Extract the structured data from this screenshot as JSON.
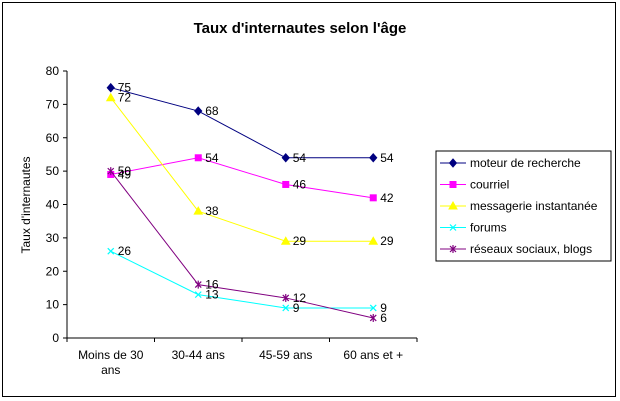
{
  "chart_data": {
    "type": "line",
    "title": "Taux d'internautes selon l'âge",
    "ylabel": "Taux d'internautes",
    "xlabel": "",
    "categories": [
      [
        "Moins de 30",
        "ans"
      ],
      [
        "30-44 ans"
      ],
      [
        "45-59 ans"
      ],
      [
        "60 ans et +"
      ]
    ],
    "ylim": [
      0,
      80
    ],
    "yticks": [
      0,
      10,
      20,
      30,
      40,
      50,
      60,
      70,
      80
    ],
    "grid": false,
    "legend": "right",
    "series": [
      {
        "name": "moteur de recherche",
        "values": [
          75,
          68,
          54,
          54
        ],
        "color": "#000080",
        "marker": "diamond"
      },
      {
        "name": "courriel",
        "values": [
          49,
          54,
          46,
          42
        ],
        "color": "#FF00FF",
        "marker": "square"
      },
      {
        "name": "messagerie instantanée",
        "values": [
          72,
          38,
          29,
          29
        ],
        "color": "#FFFF00",
        "marker": "triangle"
      },
      {
        "name": "forums",
        "values": [
          26,
          13,
          9,
          9
        ],
        "color": "#00FFFF",
        "marker": "x"
      },
      {
        "name": "réseaux sociaux, blogs",
        "values": [
          50,
          16,
          12,
          6
        ],
        "color": "#800080",
        "marker": "star"
      }
    ]
  }
}
